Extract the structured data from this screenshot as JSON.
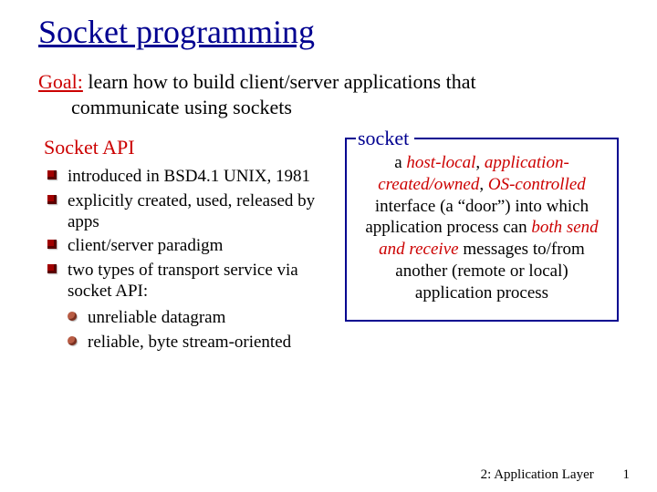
{
  "title": "Socket programming",
  "goal": {
    "label": "Goal:",
    "line1": " learn how to build client/server applications that",
    "line2": "communicate using sockets"
  },
  "left": {
    "heading": "Socket API",
    "bullets": [
      "introduced in BSD4.1 UNIX, 1981",
      "explicitly created, used, released by apps",
      "client/server paradigm",
      "two types of transport service via socket API:"
    ],
    "sub": [
      "unreliable datagram",
      "reliable, byte stream-oriented"
    ]
  },
  "right": {
    "box_label": "socket",
    "p1": "a ",
    "h1": "host-local",
    "p2": ", ",
    "h2": "application-created/owned",
    "p3": ", ",
    "h3": "OS-controlled",
    "p4": " interface (a “door”) into which application process can ",
    "h4": "both send and receive",
    "p5": " messages to/from another (remote or local) application process"
  },
  "footer": {
    "text": "2: Application Layer",
    "page": "1"
  },
  "colors": {
    "title": "#000090",
    "accent": "#cc0000",
    "bullet_square": "#a00000",
    "bullet_circle": "#b85c44",
    "background": "#ffffff"
  },
  "fonts": {
    "family": "Times New Roman",
    "title_size_pt": 36,
    "body_size_pt": 19
  }
}
